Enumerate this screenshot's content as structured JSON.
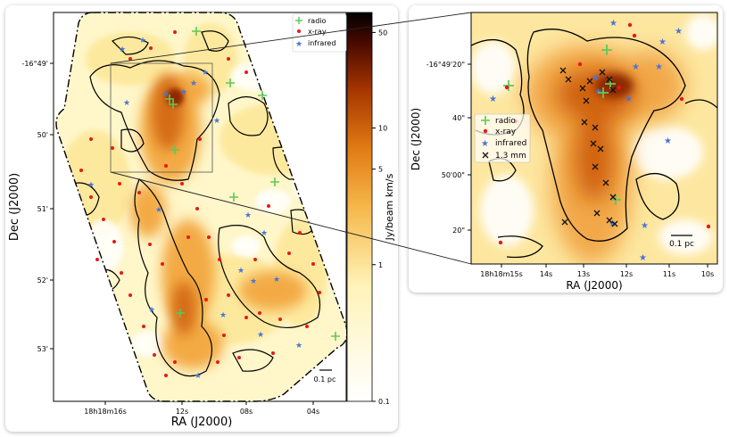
{
  "chart_data": [
    {
      "type": "heatmap",
      "panel": "main",
      "xlabel": "RA (J2000)",
      "ylabel": "Dec (J2000)",
      "x_ticks": [
        "18h18m16s",
        "12s",
        "08s",
        "04s"
      ],
      "y_ticks": [
        "-16°49'",
        "50'",
        "51'",
        "52'",
        "53'"
      ],
      "colorbar": {
        "label": "Jy/beam km/s",
        "scale": "log",
        "ticks": [
          "0.1",
          "1",
          "5",
          "10",
          "50"
        ],
        "tick_values": [
          0.1,
          1,
          5,
          10,
          50
        ],
        "range": [
          0.1,
          70
        ],
        "colormap": "afmhot_r"
      },
      "legend": {
        "position": "top-right",
        "entries": [
          {
            "label": "radio",
            "marker": "plus",
            "color": "#5fc85a"
          },
          {
            "label": "x-ray",
            "marker": "dot",
            "color": "#e81818"
          },
          {
            "label": "infrared",
            "marker": "star",
            "color": "#4a74d8"
          }
        ]
      },
      "scale_bar": "0.1 pc"
    },
    {
      "type": "heatmap",
      "panel": "zoom",
      "xlabel": "RA (J2000)",
      "ylabel": "Dec (J2000)",
      "x_ticks": [
        "18h18m15s",
        "14s",
        "13s",
        "12s",
        "11s",
        "10s"
      ],
      "y_ticks": [
        "-16°49'20\"",
        "40\"",
        "50'00\"",
        "20\""
      ],
      "legend": {
        "position": "left",
        "entries": [
          {
            "label": "radio",
            "marker": "plus",
            "color": "#5fc85a"
          },
          {
            "label": "x-ray",
            "marker": "dot",
            "color": "#e81818"
          },
          {
            "label": "infrared",
            "marker": "star",
            "color": "#4a74d8"
          },
          {
            "label": "1.3 mm",
            "marker": "x",
            "color": "#111111"
          }
        ]
      },
      "scale_bar": "0.1 pc"
    }
  ]
}
